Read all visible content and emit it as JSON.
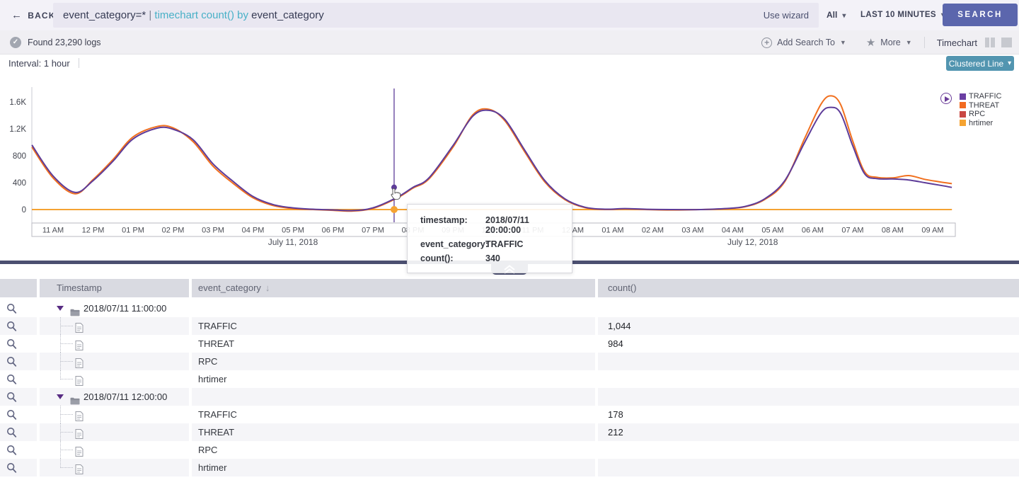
{
  "topbar": {
    "back_label": "BACK",
    "query": {
      "part1": "event_category=*",
      "pipe": " | ",
      "part2": "timechart count()",
      "part3": " by ",
      "part4": "event_category"
    },
    "use_wizard": "Use wizard",
    "scope_label": "All",
    "time_range_label": "LAST 10 MINUTES",
    "search_label": "SEARCH",
    "accent_color": "#5b66ad"
  },
  "results_bar": {
    "found_text": "Found 23,290 logs",
    "add_search_to_label": "Add Search To",
    "more_label": "More",
    "view_label": "Timechart"
  },
  "chart_header": {
    "interval_label": "Interval: 1 hour",
    "chart_type_label": "Clustered Line"
  },
  "tooltip": {
    "rows": [
      {
        "label": "timestamp:",
        "value": "2018/07/11 20:00:00"
      },
      {
        "label": "event_category:",
        "value": "TRAFFIC"
      },
      {
        "label": "count():",
        "value": "340"
      }
    ]
  },
  "chart_data": {
    "type": "line",
    "title": "timechart count() by event_category",
    "xlabel": "",
    "ylabel": "count()",
    "ylim": [
      0,
      1700
    ],
    "grid": false,
    "legend_position": "top-right",
    "ytick_values": [
      0,
      400,
      800,
      1200,
      1600
    ],
    "ytick_labels": [
      "0",
      "400",
      "800",
      "1.2K",
      "1.6K"
    ],
    "x_tick_labels": [
      "11 AM",
      "12 PM",
      "01 PM",
      "02 PM",
      "03 PM",
      "04 PM",
      "05 PM",
      "06 PM",
      "07 PM",
      "08 PM",
      "09 PM",
      "10 PM",
      "11 PM",
      "12 AM",
      "01 AM",
      "02 AM",
      "03 AM",
      "04 AM",
      "05 AM",
      "06 AM",
      "07 AM",
      "08 AM",
      "09 AM"
    ],
    "x_tick_hours": [
      11,
      12,
      13,
      14,
      15,
      16,
      17,
      18,
      19,
      20,
      21,
      22,
      23,
      24,
      25,
      26,
      27,
      28,
      29,
      30,
      31,
      32,
      33
    ],
    "date_labels": [
      {
        "text": "July 11, 2018",
        "hour": 17
      },
      {
        "text": "July 12, 2018",
        "hour": 28.5
      }
    ],
    "legend": [
      {
        "name": "TRAFFIC",
        "color": "#6b3fa3"
      },
      {
        "name": "THREAT",
        "color": "#f26b21"
      },
      {
        "name": "RPC",
        "color": "#c94743"
      },
      {
        "name": "hrtimer",
        "color": "#f5a332"
      }
    ],
    "series": [
      {
        "name": "RPC",
        "color": "#c94743",
        "points": [
          [
            10.47,
            0
          ],
          [
            33.48,
            0
          ]
        ]
      },
      {
        "name": "hrtimer",
        "color": "#f5a332",
        "points": [
          [
            10.47,
            0
          ],
          [
            33.48,
            0
          ]
        ]
      },
      {
        "name": "THREAT",
        "color": "#f1701f",
        "points": [
          [
            10.47,
            930
          ],
          [
            11,
            470
          ],
          [
            11.55,
            235
          ],
          [
            12,
            445
          ],
          [
            12.5,
            745
          ],
          [
            13,
            1080
          ],
          [
            13.6,
            1235
          ],
          [
            14,
            1215
          ],
          [
            14.5,
            1010
          ],
          [
            15,
            645
          ],
          [
            15.5,
            390
          ],
          [
            16,
            175
          ],
          [
            16.5,
            60
          ],
          [
            17,
            15
          ],
          [
            17.5,
            0
          ],
          [
            18,
            -12
          ],
          [
            18.5,
            -22
          ],
          [
            19,
            18
          ],
          [
            19.6,
            170
          ],
          [
            20,
            318
          ],
          [
            20.4,
            455
          ],
          [
            21,
            925
          ],
          [
            21.5,
            1410
          ],
          [
            21.9,
            1490
          ],
          [
            22.3,
            1320
          ],
          [
            22.8,
            855
          ],
          [
            23.3,
            410
          ],
          [
            23.8,
            148
          ],
          [
            24.3,
            28
          ],
          [
            24.8,
            0
          ],
          [
            25.3,
            10
          ],
          [
            25.8,
            0
          ],
          [
            26.5,
            -6
          ],
          [
            27.2,
            0
          ],
          [
            27.8,
            12
          ],
          [
            28.3,
            40
          ],
          [
            28.8,
            150
          ],
          [
            29.3,
            415
          ],
          [
            29.8,
            1060
          ],
          [
            30.2,
            1560
          ],
          [
            30.45,
            1690
          ],
          [
            30.7,
            1560
          ],
          [
            31,
            1020
          ],
          [
            31.3,
            560
          ],
          [
            31.6,
            480
          ],
          [
            32,
            470
          ],
          [
            32.4,
            505
          ],
          [
            32.8,
            450
          ],
          [
            33.2,
            410
          ],
          [
            33.48,
            385
          ]
        ]
      },
      {
        "name": "TRAFFIC",
        "color": "#5e3c99",
        "points": [
          [
            10.47,
            960
          ],
          [
            11,
            500
          ],
          [
            11.55,
            255
          ],
          [
            12,
            430
          ],
          [
            12.5,
            720
          ],
          [
            13,
            1050
          ],
          [
            13.6,
            1210
          ],
          [
            14,
            1195
          ],
          [
            14.5,
            1040
          ],
          [
            15,
            680
          ],
          [
            15.5,
            420
          ],
          [
            16,
            195
          ],
          [
            16.5,
            75
          ],
          [
            17,
            25
          ],
          [
            17.5,
            5
          ],
          [
            18,
            -5
          ],
          [
            18.5,
            -15
          ],
          [
            19,
            25
          ],
          [
            19.6,
            180
          ],
          [
            20,
            330
          ],
          [
            20.4,
            470
          ],
          [
            21,
            950
          ],
          [
            21.5,
            1390
          ],
          [
            21.9,
            1475
          ],
          [
            22.3,
            1340
          ],
          [
            22.8,
            880
          ],
          [
            23.3,
            430
          ],
          [
            23.8,
            160
          ],
          [
            24.3,
            35
          ],
          [
            24.8,
            5
          ],
          [
            25.3,
            15
          ],
          [
            25.8,
            5
          ],
          [
            26.5,
            0
          ],
          [
            27.2,
            0
          ],
          [
            27.8,
            15
          ],
          [
            28.3,
            45
          ],
          [
            28.8,
            160
          ],
          [
            29.3,
            430
          ],
          [
            29.8,
            1000
          ],
          [
            30.2,
            1430
          ],
          [
            30.45,
            1520
          ],
          [
            30.7,
            1430
          ],
          [
            31,
            950
          ],
          [
            31.3,
            530
          ],
          [
            31.6,
            460
          ],
          [
            32,
            455
          ],
          [
            32.4,
            440
          ],
          [
            32.8,
            400
          ],
          [
            33.2,
            360
          ],
          [
            33.48,
            330
          ]
        ]
      }
    ],
    "cursor": {
      "hour": 19.53,
      "traffic_value": 330,
      "hrtimer_value": 0
    }
  },
  "table": {
    "columns": [
      "Timestamp",
      "event_category",
      "count()"
    ],
    "groups": [
      {
        "timestamp": "2018/07/11 11:00:00",
        "rows": [
          {
            "event_category": "TRAFFIC",
            "count": "1,044"
          },
          {
            "event_category": "THREAT",
            "count": "984"
          },
          {
            "event_category": "RPC",
            "count": ""
          },
          {
            "event_category": "hrtimer",
            "count": ""
          }
        ]
      },
      {
        "timestamp": "2018/07/11 12:00:00",
        "rows": [
          {
            "event_category": "TRAFFIC",
            "count": "178"
          },
          {
            "event_category": "THREAT",
            "count": "212"
          },
          {
            "event_category": "RPC",
            "count": ""
          },
          {
            "event_category": "hrtimer",
            "count": ""
          }
        ]
      }
    ]
  }
}
